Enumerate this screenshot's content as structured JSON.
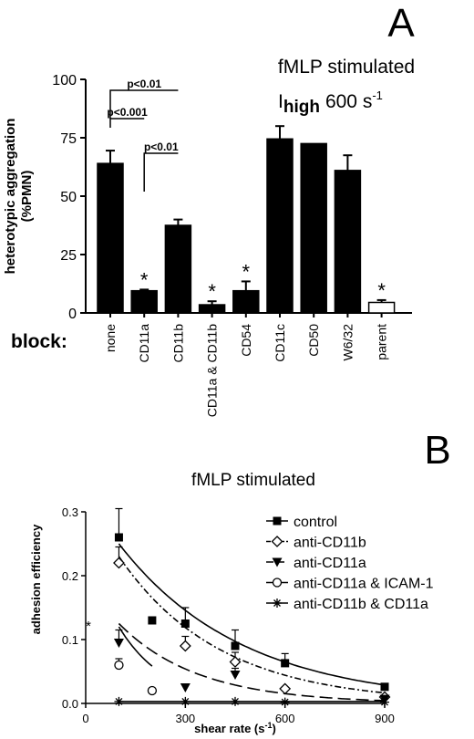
{
  "chart_data": [
    {
      "type": "bar",
      "panel_label": "A",
      "title_line1": "fMLP stimulated",
      "title_I": "I",
      "title_sub": "high",
      "title_rate": "600 s",
      "title_exp": "-1",
      "ylabel_line1": "heterotypic aggregation",
      "ylabel_line2": "(%PMN)",
      "xlabel": "block:",
      "ylim": [
        0,
        100
      ],
      "yticks": [
        "0",
        "25",
        "50",
        "75",
        "100"
      ],
      "categories": [
        "none",
        "CD11a",
        "CD11b",
        "CD11a & CD11b",
        "CD54",
        "CD11c",
        "CD50",
        "W6/32",
        "parent"
      ],
      "values": [
        64,
        9.5,
        37.5,
        3.5,
        9.5,
        74.5,
        72.5,
        61,
        4.5
      ],
      "errors": [
        5.5,
        0.5,
        2.5,
        1.5,
        4,
        5.5,
        0,
        6.5,
        1
      ],
      "filled": [
        true,
        true,
        true,
        true,
        true,
        true,
        true,
        true,
        false
      ],
      "significant": [
        "",
        "*",
        "",
        "*",
        "*",
        "",
        "",
        "",
        "*"
      ],
      "comparisons": [
        {
          "from": "none",
          "to": "CD11b",
          "label": "p<0.01"
        },
        {
          "from": "none",
          "to": "CD11a",
          "label": "p<0.001"
        },
        {
          "from": "CD11a",
          "to": "CD11b",
          "label": "p<0.01"
        }
      ]
    },
    {
      "type": "scatter",
      "panel_label": "B",
      "title": "fMLP stimulated",
      "xlabel": "shear rate (s-1)",
      "xlabel_prefix": "shear rate (s",
      "xlabel_exp": "-1",
      "xlabel_suffix": ")",
      "ylabel": "adhesion efficiency",
      "xlim": [
        0,
        900
      ],
      "ylim": [
        0,
        0.3
      ],
      "xticks": [
        "0",
        "300",
        "600",
        "900"
      ],
      "yticks": [
        "0.0",
        "0.1",
        "0.2",
        "0.3"
      ],
      "legend_position": "top-right",
      "annotation": "*",
      "series": [
        {
          "name": "control",
          "marker": "filled-square",
          "line": "solid",
          "x": [
            100,
            200,
            300,
            450,
            600,
            900
          ],
          "y": [
            0.26,
            0.13,
            0.125,
            0.09,
            0.063,
            0.026
          ],
          "err": [
            0.045,
            0,
            0.025,
            0.025,
            0.015,
            0
          ],
          "fit": [
            0.25,
            -0.0027
          ]
        },
        {
          "name": "anti-CD11b",
          "marker": "open-diamond",
          "line": "dash-dot",
          "x": [
            100,
            300,
            450,
            600,
            900
          ],
          "y": [
            0.22,
            0.09,
            0.065,
            0.023,
            0.01
          ],
          "err": [
            0.025,
            0.015,
            0.015,
            0,
            0
          ],
          "fit": [
            0.23,
            -0.0033
          ]
        },
        {
          "name": "anti-CD11a",
          "marker": "filled-triangle-down",
          "line": "long-dash",
          "x": [
            100,
            300,
            450,
            900
          ],
          "y": [
            0.095,
            0.025,
            0.045,
            0.007
          ],
          "err": [
            0.02,
            0,
            0.01,
            0
          ],
          "fit": [
            0.125,
            -0.0042
          ]
        },
        {
          "name": "anti-CD11a & ICAM-1",
          "marker": "open-circle",
          "line": "solid",
          "x": [
            100,
            200
          ],
          "y": [
            0.06,
            0.02
          ],
          "err": [
            0.01,
            0
          ],
          "fit": [
            0.12,
            -0.0072
          ],
          "fit_xmax": 200
        },
        {
          "name": "anti-CD11b & CD11a",
          "marker": "asterisk",
          "line": "solid",
          "x": [
            100,
            300,
            450,
            600,
            900
          ],
          "y": [
            0.003,
            0.003,
            0.003,
            0.002,
            0.002
          ],
          "err": [
            0,
            0,
            0,
            0,
            0
          ],
          "fit": [
            0.003,
            0
          ]
        }
      ]
    }
  ]
}
